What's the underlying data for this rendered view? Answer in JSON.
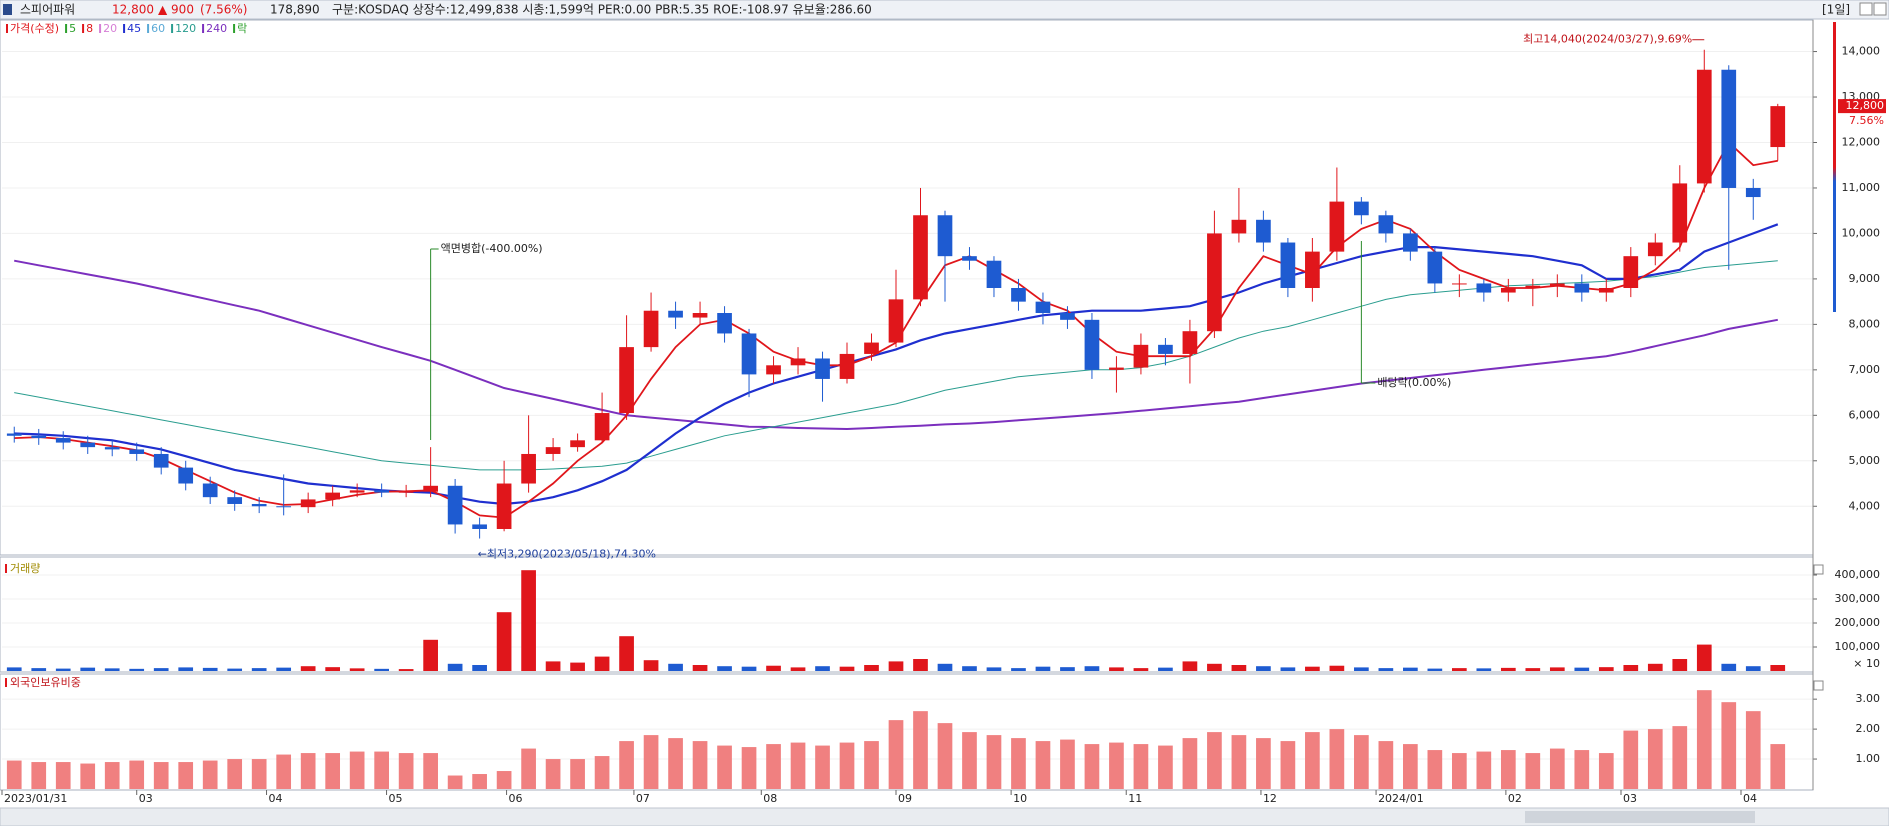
{
  "header": {
    "name": "스피어파워",
    "price": "12,800",
    "change": "▲ 900",
    "change_rate": "(7.56%)",
    "volume": "178,890",
    "info": "구분:KOSDAQ 상장수:12,499,838 시총:1,599억 PER:0.00 PBR:5.35 ROE:-108.97 유보율:286.60",
    "period": "[1일]"
  },
  "chart_data": [
    {
      "type": "candlestick",
      "up_color": "#e0161b",
      "down_color": "#1e5bd1",
      "legend": [
        {
          "name": "가격(수정)",
          "color": "#e0161b"
        },
        {
          "name": "5",
          "color": "#2ca02c"
        },
        {
          "name": "8",
          "color": "#e0161b"
        },
        {
          "name": "20",
          "color": "#d67fd6"
        },
        {
          "name": "45",
          "color": "#1f2fcf"
        },
        {
          "name": "60",
          "color": "#5aa9d6"
        },
        {
          "name": "120",
          "color": "#2a9d8f"
        },
        {
          "name": "240",
          "color": "#7b2fbe"
        },
        {
          "name": "락",
          "color": "#2ca02c"
        }
      ],
      "ylim": [
        2950,
        14650
      ],
      "yticks": [
        {
          "value": 4000,
          "label": "4,000"
        },
        {
          "value": 5000,
          "label": "5,000"
        },
        {
          "value": 6000,
          "label": "6,000"
        },
        {
          "value": 7000,
          "label": "7,000"
        },
        {
          "value": 8000,
          "label": "8,000"
        },
        {
          "value": 9000,
          "label": "9,000"
        },
        {
          "value": 10000,
          "label": "10,000"
        },
        {
          "value": 11000,
          "label": "11,000"
        },
        {
          "value": 12000,
          "label": "12,000"
        },
        {
          "value": 13000,
          "label": "13,000"
        },
        {
          "value": 14000,
          "label": "14,000"
        }
      ],
      "open": [
        5600,
        5550,
        5500,
        5400,
        5300,
        5250,
        5150,
        4850,
        4500,
        4200,
        4050,
        4000,
        3980,
        4150,
        4300,
        4350,
        4300,
        4320,
        4450,
        3600,
        3500,
        4500,
        5150,
        5300,
        5450,
        6050,
        7500,
        8300,
        8150,
        8250,
        7800,
        6900,
        7100,
        7250,
        6800,
        7350,
        7600,
        8550,
        10400,
        9500,
        9400,
        8800,
        8500,
        8250,
        8100,
        7000,
        7050,
        7550,
        7350,
        7850,
        10000,
        10300,
        9800,
        8800,
        9600,
        10700,
        10400,
        10000,
        9600,
        8900,
        8900,
        8700,
        8800,
        8850,
        8900,
        8700,
        8800,
        9500,
        9800,
        11100,
        13600,
        11000,
        11900
      ],
      "high": [
        5750,
        5700,
        5650,
        5550,
        5450,
        5400,
        5300,
        5000,
        4650,
        4350,
        4200,
        4700,
        4300,
        4450,
        4500,
        4500,
        4470,
        5300,
        4600,
        3750,
        5000,
        6000,
        5500,
        5600,
        6500,
        8200,
        8700,
        8500,
        8500,
        8400,
        7900,
        7300,
        7500,
        7400,
        7600,
        7800,
        9200,
        11000,
        10500,
        9700,
        9500,
        9000,
        8700,
        8400,
        8250,
        7300,
        7800,
        7700,
        8100,
        10500,
        11000,
        10500,
        9900,
        9900,
        11450,
        10800,
        10500,
        10100,
        9700,
        9100,
        9000,
        9000,
        9000,
        9100,
        9100,
        9000,
        9700,
        10000,
        11500,
        14040,
        13700,
        11200,
        12850
      ],
      "low": [
        5400,
        5350,
        5250,
        5150,
        5100,
        5000,
        4700,
        4350,
        4050,
        3900,
        3850,
        3800,
        3850,
        4000,
        4200,
        4200,
        4200,
        4200,
        3400,
        3290,
        3450,
        4300,
        5000,
        5200,
        5400,
        5900,
        7400,
        7900,
        8000,
        7600,
        6400,
        6700,
        6900,
        6300,
        6700,
        7200,
        7500,
        8400,
        8500,
        9200,
        8600,
        8300,
        8000,
        7900,
        6800,
        6500,
        6900,
        7100,
        6700,
        7700,
        9800,
        9600,
        8600,
        8500,
        9400,
        10200,
        9800,
        9400,
        8700,
        8600,
        8500,
        8500,
        8400,
        8600,
        8500,
        8500,
        8600,
        9300,
        9600,
        10900,
        9200,
        10300,
        11600
      ],
      "close": [
        5550,
        5500,
        5400,
        5300,
        5250,
        5150,
        4850,
        4500,
        4200,
        4050,
        4000,
        3980,
        4150,
        4300,
        4350,
        4300,
        4320,
        4450,
        3600,
        3500,
        4500,
        5150,
        5300,
        5450,
        6050,
        7500,
        8300,
        8150,
        8250,
        7800,
        6900,
        7100,
        7250,
        6800,
        7350,
        7600,
        8550,
        10400,
        9500,
        9400,
        8800,
        8500,
        8250,
        8100,
        7000,
        7050,
        7550,
        7350,
        7850,
        10000,
        10300,
        9800,
        8800,
        9600,
        10700,
        10400,
        10000,
        9600,
        8900,
        8900,
        8700,
        8800,
        8850,
        8900,
        8700,
        8800,
        9500,
        9800,
        11100,
        13600,
        11000,
        10800,
        12800
      ],
      "lines": [
        {
          "color": "#7b2fbe",
          "values": [
            9400,
            9300,
            9200,
            9100,
            9000,
            8900,
            8780,
            8660,
            8540,
            8420,
            8300,
            8140,
            7980,
            7820,
            7660,
            7500,
            7350,
            7200,
            7000,
            6800,
            6600,
            6480,
            6360,
            6240,
            6120,
            6000,
            5950,
            5900,
            5850,
            5800,
            5750,
            5740,
            5720,
            5710,
            5700,
            5720,
            5750,
            5770,
            5800,
            5820,
            5850,
            5890,
            5930,
            5970,
            6010,
            6050,
            6100,
            6150,
            6200,
            6250,
            6300,
            6380,
            6460,
            6540,
            6620,
            6700,
            6760,
            6820,
            6880,
            6940,
            7000,
            7060,
            7120,
            7180,
            7240,
            7300,
            7400,
            7520,
            7640,
            7760,
            7900,
            8000,
            8100
          ]
        },
        {
          "color": "#2a9d8f",
          "values": [
            6500,
            6400,
            6300,
            6200,
            6100,
            6000,
            5900,
            5800,
            5700,
            5600,
            5500,
            5400,
            5300,
            5200,
            5100,
            5000,
            4950,
            4900,
            4850,
            4800,
            4800,
            4800,
            4820,
            4850,
            4880,
            4950,
            5100,
            5250,
            5400,
            5550,
            5650,
            5750,
            5850,
            5950,
            6050,
            6150,
            6250,
            6400,
            6550,
            6650,
            6750,
            6850,
            6900,
            6950,
            7000,
            7000,
            7050,
            7150,
            7300,
            7500,
            7700,
            7850,
            7950,
            8100,
            8250,
            8400,
            8550,
            8650,
            8700,
            8750,
            8800,
            8850,
            8870,
            8900,
            8920,
            8950,
            9000,
            9050,
            9150,
            9250,
            9300,
            9350,
            9400
          ]
        },
        {
          "color": "#1f2fcf",
          "values": [
            5600,
            5580,
            5550,
            5500,
            5450,
            5350,
            5250,
            5100,
            4950,
            4800,
            4700,
            4600,
            4500,
            4450,
            4400,
            4350,
            4320,
            4300,
            4200,
            4100,
            4050,
            4100,
            4200,
            4350,
            4550,
            4800,
            5200,
            5600,
            5950,
            6250,
            6500,
            6700,
            6850,
            7000,
            7150,
            7300,
            7450,
            7650,
            7800,
            7900,
            8000,
            8100,
            8200,
            8250,
            8300,
            8300,
            8300,
            8350,
            8400,
            8550,
            8700,
            8900,
            9050,
            9200,
            9350,
            9500,
            9600,
            9700,
            9700,
            9650,
            9600,
            9550,
            9500,
            9400,
            9300,
            9000,
            9000,
            9100,
            9200,
            9600,
            9800,
            10000,
            10200
          ]
        },
        {
          "color": "#e0161b",
          "values": [
            5500,
            5520,
            5480,
            5400,
            5320,
            5230,
            5050,
            4800,
            4550,
            4300,
            4120,
            4030,
            4050,
            4150,
            4250,
            4320,
            4330,
            4350,
            4100,
            3800,
            3750,
            4100,
            4500,
            5000,
            5400,
            6000,
            6800,
            7500,
            8000,
            8100,
            7800,
            7400,
            7200,
            7100,
            7100,
            7300,
            7600,
            8500,
            9300,
            9500,
            9200,
            8900,
            8500,
            8300,
            7800,
            7400,
            7300,
            7300,
            7300,
            7900,
            8800,
            9500,
            9300,
            9100,
            9700,
            10100,
            10300,
            10100,
            9600,
            9200,
            9000,
            8800,
            8800,
            8850,
            8800,
            8750,
            8900,
            9200,
            9700,
            11000,
            12000,
            11500,
            11600
          ]
        }
      ],
      "annotations": {
        "high": "최고14,040(2024/03/27),9.69%",
        "low": "←최저3,290(2023/05/18),74.30%",
        "split": "액면병합(-400.00%)",
        "dividend": "배당락(0.00%)"
      },
      "last_price": "12,800",
      "last_rate": "7.56%"
    },
    {
      "type": "bar",
      "title": "거래량",
      "up_color": "#e0161b",
      "down_color": "#1e5bd1",
      "ylim": [
        0,
        450000
      ],
      "yticks": [
        {
          "value": 100000,
          "label": "100,000"
        },
        {
          "value": 200000,
          "label": "200,000"
        },
        {
          "value": 300000,
          "label": "300,000"
        },
        {
          "value": 400000,
          "label": "400,000"
        }
      ],
      "unit": "× 10",
      "values": [
        15000,
        12000,
        10000,
        14000,
        11000,
        9000,
        12000,
        15000,
        13000,
        10000,
        12000,
        14000,
        20000,
        16000,
        11000,
        9000,
        8000,
        130000,
        30000,
        25000,
        245000,
        420000,
        40000,
        35000,
        60000,
        145000,
        45000,
        30000,
        25000,
        20000,
        18000,
        22000,
        15000,
        20000,
        18000,
        25000,
        40000,
        50000,
        30000,
        20000,
        15000,
        12000,
        18000,
        16000,
        20000,
        15000,
        12000,
        14000,
        40000,
        30000,
        25000,
        20000,
        15000,
        18000,
        22000,
        15000,
        12000,
        14000,
        10000,
        12000,
        11000,
        13000,
        12000,
        15000,
        14000,
        16000,
        25000,
        30000,
        50000,
        110000,
        30000,
        20000,
        25000
      ]
    },
    {
      "type": "bar",
      "title": "외국인보유비중",
      "color": "#f08080",
      "ylim": [
        0,
        3.74
      ],
      "yticks": [
        {
          "value": 1,
          "label": "1.00"
        },
        {
          "value": 2,
          "label": "2.00"
        },
        {
          "value": 3,
          "label": "3.00"
        }
      ],
      "values": [
        0.95,
        0.9,
        0.9,
        0.85,
        0.9,
        0.95,
        0.9,
        0.9,
        0.95,
        1.0,
        1.0,
        1.15,
        1.2,
        1.2,
        1.25,
        1.25,
        1.2,
        1.2,
        0.45,
        0.5,
        0.6,
        1.35,
        1.0,
        1.0,
        1.1,
        1.6,
        1.8,
        1.7,
        1.6,
        1.45,
        1.4,
        1.5,
        1.55,
        1.45,
        1.55,
        1.6,
        2.3,
        2.6,
        2.2,
        1.9,
        1.8,
        1.7,
        1.6,
        1.65,
        1.5,
        1.55,
        1.5,
        1.45,
        1.7,
        1.9,
        1.8,
        1.7,
        1.6,
        1.9,
        2.0,
        1.8,
        1.6,
        1.5,
        1.3,
        1.2,
        1.25,
        1.3,
        1.2,
        1.35,
        1.3,
        1.2,
        1.95,
        2.0,
        2.1,
        3.3,
        2.9,
        2.6,
        1.5
      ],
      "xticks": [
        {
          "value": 0,
          "label": "2023/01/31"
        },
        {
          "value": 5.5,
          "label": "03"
        },
        {
          "value": 10.8,
          "label": "04"
        },
        {
          "value": 15.7,
          "label": "05"
        },
        {
          "value": 20.6,
          "label": "06"
        },
        {
          "value": 25.8,
          "label": "07"
        },
        {
          "value": 31.0,
          "label": "08"
        },
        {
          "value": 36.5,
          "label": "09"
        },
        {
          "value": 41.2,
          "label": "10"
        },
        {
          "value": 45.9,
          "label": "11"
        },
        {
          "value": 51.4,
          "label": "12"
        },
        {
          "value": 56.1,
          "label": "2024/01"
        },
        {
          "value": 61.4,
          "label": "02"
        },
        {
          "value": 66.1,
          "label": "03"
        },
        {
          "value": 71.0,
          "label": "04"
        }
      ]
    }
  ]
}
